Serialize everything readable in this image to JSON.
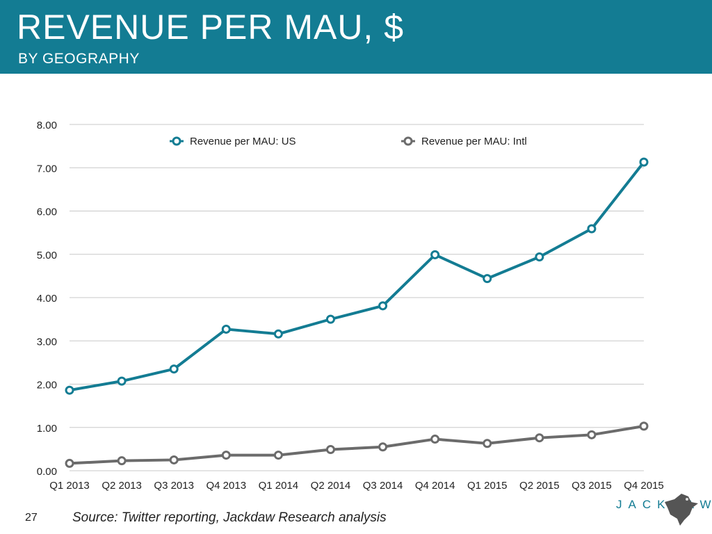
{
  "slide": {
    "title": "REVENUE PER MAU, $",
    "subtitle": "BY GEOGRAPHY",
    "page_number": "27",
    "source": "Source: Twitter reporting, Jackdaw Research analysis",
    "brand": "JACKDAW"
  },
  "colors": {
    "header": "#137c93",
    "us": "#137c93",
    "intl": "#6b6b6b",
    "grid": "#c8c8c8"
  },
  "chart_data": {
    "type": "line",
    "categories": [
      "Q1 2013",
      "Q2 2013",
      "Q3 2013",
      "Q4 2013",
      "Q1 2014",
      "Q2 2014",
      "Q3 2014",
      "Q4 2014",
      "Q1 2015",
      "Q2 2015",
      "Q3 2015",
      "Q4 2015"
    ],
    "series": [
      {
        "name": "Revenue per MAU: US",
        "values": [
          1.86,
          2.07,
          2.35,
          3.27,
          3.16,
          3.5,
          3.81,
          4.99,
          4.44,
          4.94,
          5.59,
          7.13
        ]
      },
      {
        "name": "Revenue per MAU: Intl",
        "values": [
          0.17,
          0.23,
          0.25,
          0.36,
          0.36,
          0.49,
          0.55,
          0.73,
          0.63,
          0.76,
          0.83,
          1.03
        ]
      }
    ],
    "y_ticks": [
      "0.00",
      "1.00",
      "2.00",
      "3.00",
      "4.00",
      "5.00",
      "6.00",
      "7.00",
      "8.00"
    ],
    "ylim": [
      0,
      8
    ],
    "grid": true,
    "legend_position": "top"
  }
}
